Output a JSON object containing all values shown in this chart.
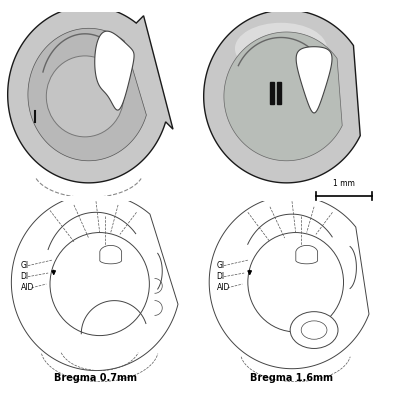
{
  "background_color": "#ffffff",
  "fig_width": 4.0,
  "fig_height": 3.99,
  "dpi": 100,
  "title_left": "Bregma 0.7mm",
  "title_right": "Bregma 1.6mm",
  "scale_bar_text": "1 mm",
  "labels": [
    "GI",
    "DI",
    "AID"
  ]
}
